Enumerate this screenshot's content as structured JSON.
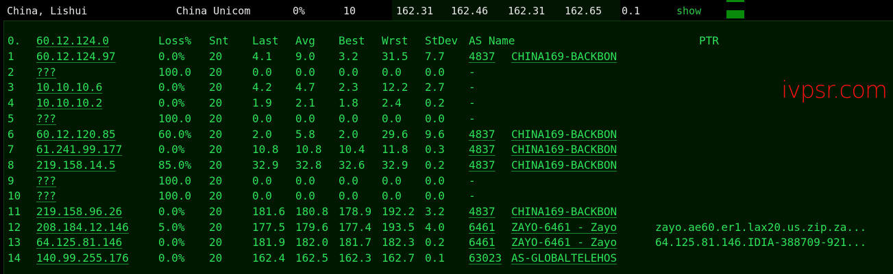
{
  "summary": {
    "location": "China, Lishui",
    "isp": "China Unicom",
    "loss": "0%",
    "sent": "10",
    "last": "162.31",
    "avg": "162.46",
    "best": "162.31",
    "worst": "162.65",
    "stdev": "0.1",
    "action": "show",
    "bar_color": "#0a8a0a"
  },
  "header": {
    "idx": "0.",
    "host": "60.12.124.0",
    "loss": "Loss%",
    "snt": "Snt",
    "last": "Last",
    "avg": "Avg",
    "best": "Best",
    "wrst": "Wrst",
    "stdev": "StDev",
    "as": "AS Name",
    "ptr": "PTR"
  },
  "hops": [
    {
      "idx": "1",
      "host": "60.12.124.97",
      "loss": "0.0%",
      "snt": "20",
      "last": "4.1",
      "avg": "9.0",
      "best": "3.2",
      "wrst": "31.5",
      "stdev": "7.7",
      "asn": "4837",
      "asname": "CHINA169-BACKBON",
      "ptr": ""
    },
    {
      "idx": "2",
      "host": "???",
      "loss": "100.0",
      "snt": "20",
      "last": "0.0",
      "avg": "0.0",
      "best": "0.0",
      "wrst": "0.0",
      "stdev": "0.0",
      "asn": "-",
      "asname": "",
      "ptr": ""
    },
    {
      "idx": "3",
      "host": "10.10.10.6",
      "loss": "0.0%",
      "snt": "20",
      "last": "4.2",
      "avg": "4.7",
      "best": "2.3",
      "wrst": "12.2",
      "stdev": "2.7",
      "asn": "-",
      "asname": "",
      "ptr": ""
    },
    {
      "idx": "4",
      "host": "10.10.10.2",
      "loss": "0.0%",
      "snt": "20",
      "last": "1.9",
      "avg": "2.1",
      "best": "1.8",
      "wrst": "2.4",
      "stdev": "0.2",
      "asn": "-",
      "asname": "",
      "ptr": ""
    },
    {
      "idx": "5",
      "host": "???",
      "loss": "100.0",
      "snt": "20",
      "last": "0.0",
      "avg": "0.0",
      "best": "0.0",
      "wrst": "0.0",
      "stdev": "0.0",
      "asn": "-",
      "asname": "",
      "ptr": ""
    },
    {
      "idx": "6",
      "host": "60.12.120.85",
      "loss": "60.0%",
      "snt": "20",
      "last": "2.0",
      "avg": "5.8",
      "best": "2.0",
      "wrst": "29.6",
      "stdev": "9.6",
      "asn": "4837",
      "asname": "CHINA169-BACKBON",
      "ptr": ""
    },
    {
      "idx": "7",
      "host": "61.241.99.177",
      "loss": "0.0%",
      "snt": "20",
      "last": "10.8",
      "avg": "10.8",
      "best": "10.4",
      "wrst": "11.8",
      "stdev": "0.3",
      "asn": "4837",
      "asname": "CHINA169-BACKBON",
      "ptr": ""
    },
    {
      "idx": "8",
      "host": "219.158.14.5",
      "loss": "85.0%",
      "snt": "20",
      "last": "32.9",
      "avg": "32.8",
      "best": "32.6",
      "wrst": "32.9",
      "stdev": "0.2",
      "asn": "4837",
      "asname": "CHINA169-BACKBON",
      "ptr": ""
    },
    {
      "idx": "9",
      "host": "???",
      "loss": "100.0",
      "snt": "20",
      "last": "0.0",
      "avg": "0.0",
      "best": "0.0",
      "wrst": "0.0",
      "stdev": "0.0",
      "asn": "-",
      "asname": "",
      "ptr": ""
    },
    {
      "idx": "10",
      "host": "???",
      "loss": "100.0",
      "snt": "20",
      "last": "0.0",
      "avg": "0.0",
      "best": "0.0",
      "wrst": "0.0",
      "stdev": "0.0",
      "asn": "-",
      "asname": "",
      "ptr": ""
    },
    {
      "idx": "11",
      "host": "219.158.96.26",
      "loss": "0.0%",
      "snt": "20",
      "last": "181.6",
      "avg": "180.8",
      "best": "178.9",
      "wrst": "192.2",
      "stdev": "3.2",
      "asn": "4837",
      "asname": "CHINA169-BACKBON",
      "ptr": ""
    },
    {
      "idx": "12",
      "host": "208.184.12.146",
      "loss": "5.0%",
      "snt": "20",
      "last": "177.5",
      "avg": "179.6",
      "best": "177.4",
      "wrst": "193.5",
      "stdev": "4.0",
      "asn": "6461",
      "asname": "ZAYO-6461 - Zayo",
      "ptr": "zayo.ae60.er1.lax20.us.zip.za..."
    },
    {
      "idx": "13",
      "host": "64.125.81.146",
      "loss": "0.0%",
      "snt": "20",
      "last": "181.9",
      "avg": "182.0",
      "best": "181.7",
      "wrst": "182.3",
      "stdev": "0.2",
      "asn": "6461",
      "asname": "ZAYO-6461 - Zayo",
      "ptr": "64.125.81.146.IDIA-388709-921..."
    },
    {
      "idx": "14",
      "host": "140.99.255.176",
      "loss": "0.0%",
      "snt": "20",
      "last": "162.4",
      "avg": "162.5",
      "best": "162.3",
      "wrst": "162.7",
      "stdev": "0.1",
      "asn": "63023",
      "asname": "AS-GLOBALTELEHOS",
      "ptr": ""
    }
  ],
  "watermark": "ivpsr.com"
}
